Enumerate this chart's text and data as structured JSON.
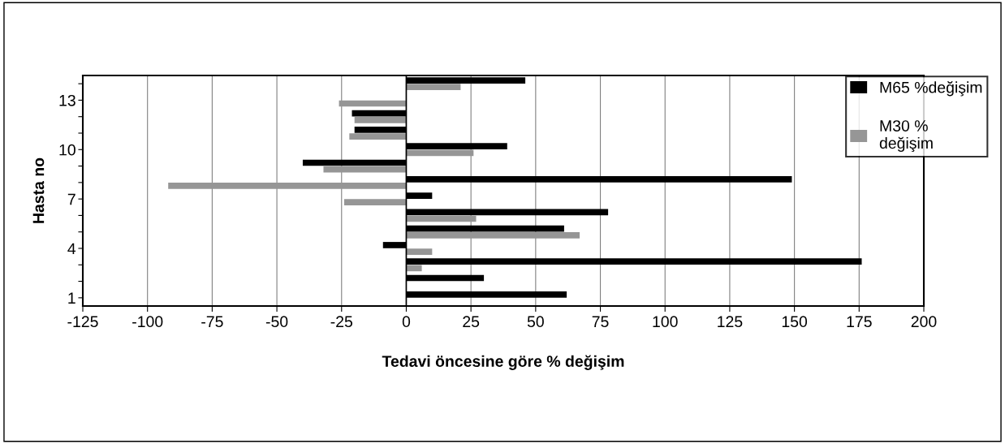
{
  "chart_data": {
    "type": "bar",
    "orientation": "horizontal",
    "xlabel": "Tedavi öncesine göre % değişim",
    "ylabel": "Hasta no",
    "categories": [
      null,
      "13",
      null,
      null,
      "10",
      null,
      null,
      "7",
      null,
      null,
      "4",
      null,
      null,
      "1"
    ],
    "series": [
      {
        "name": "M65 %değişim",
        "color": "#000000",
        "values": [
          46,
          null,
          -21,
          -20,
          39,
          -40,
          149,
          10,
          78,
          61,
          -9,
          176,
          30,
          62
        ]
      },
      {
        "name": "M30 % değişim",
        "color": "#969696",
        "values": [
          21,
          -26,
          -20,
          -22,
          26,
          -32,
          -92,
          -24,
          27,
          67,
          10,
          6,
          null,
          null
        ]
      }
    ],
    "xlim": [
      -125,
      200
    ],
    "xticks": [
      -125,
      -100,
      -75,
      -50,
      -25,
      0,
      25,
      50,
      75,
      100,
      125,
      150,
      175,
      200
    ],
    "grid": "x",
    "legend": "top right"
  }
}
